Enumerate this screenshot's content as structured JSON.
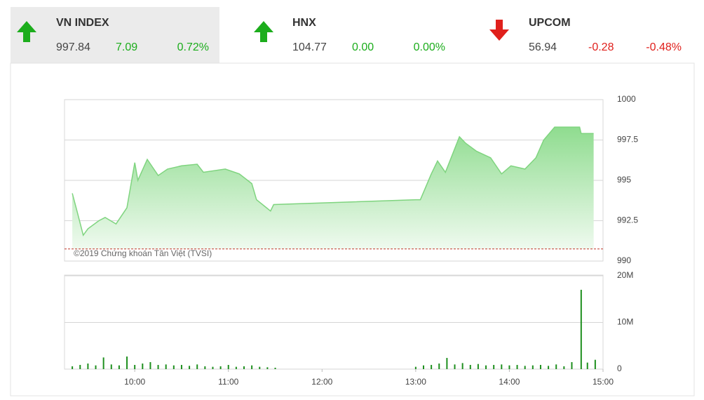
{
  "indices": [
    {
      "name": "VN INDEX",
      "value": "997.84",
      "change": "7.09",
      "pct": "0.72%",
      "direction": "up",
      "color": "#1cad1c"
    },
    {
      "name": "HNX",
      "value": "104.77",
      "change": "0.00",
      "pct": "0.00%",
      "direction": "up",
      "color": "#1cad1c"
    },
    {
      "name": "UPCOM",
      "value": "56.94",
      "change": "-0.28",
      "pct": "-0.48%",
      "direction": "down",
      "color": "#e0201c"
    }
  ],
  "chart_data": [
    {
      "type": "area",
      "watermark": "©2019 Chứng khoán Tân Việt (TVSI)",
      "color": "#7fd47f",
      "reference_line": 990.75,
      "reference_color": "#c0392b",
      "x": [
        "09:20",
        "09:23",
        "09:27",
        "09:30",
        "09:37",
        "09:41",
        "09:48",
        "09:55",
        "10:00",
        "10:02",
        "10:08",
        "10:15",
        "10:21",
        "10:30",
        "10:40",
        "10:44",
        "10:58",
        "11:07",
        "11:15",
        "11:18",
        "11:27",
        "11:29",
        "13:00",
        "13:03",
        "13:10",
        "13:14",
        "13:19",
        "13:28",
        "13:32",
        "13:39",
        "13:48",
        "13:55",
        "14:01",
        "14:10",
        "14:17",
        "14:22",
        "14:29",
        "14:45",
        "14:46",
        "14:54"
      ],
      "values": [
        994.2,
        993.1,
        991.6,
        992.0,
        992.5,
        992.7,
        992.3,
        993.3,
        996.1,
        995.0,
        996.3,
        995.3,
        995.7,
        995.9,
        996.0,
        995.5,
        995.7,
        995.4,
        994.8,
        993.8,
        993.1,
        993.5,
        993.8,
        993.8,
        995.4,
        996.2,
        995.5,
        997.7,
        997.3,
        996.8,
        996.4,
        995.4,
        995.9,
        995.7,
        996.4,
        997.5,
        998.3,
        998.3,
        997.9,
        997.9
      ],
      "xlim": [
        "09:15",
        "15:00"
      ],
      "ylim": [
        990,
        1000
      ],
      "yticks": [
        990,
        {
          "value": 992.5,
          "label": "992.5"
        },
        995,
        {
          "value": 997.5,
          "label": "997.5"
        },
        1000
      ],
      "grid": true
    },
    {
      "type": "bar",
      "color": "#1e8f1e",
      "x": [
        "09:20",
        "09:25",
        "09:30",
        "09:35",
        "09:40",
        "09:45",
        "09:50",
        "09:55",
        "10:00",
        "10:05",
        "10:10",
        "10:15",
        "10:20",
        "10:25",
        "10:30",
        "10:35",
        "10:40",
        "10:45",
        "10:50",
        "10:55",
        "11:00",
        "11:05",
        "11:10",
        "11:15",
        "11:20",
        "11:25",
        "11:30",
        "13:00",
        "13:05",
        "13:10",
        "13:15",
        "13:20",
        "13:25",
        "13:30",
        "13:35",
        "13:40",
        "13:45",
        "13:50",
        "13:55",
        "14:00",
        "14:05",
        "14:10",
        "14:15",
        "14:20",
        "14:25",
        "14:30",
        "14:35",
        "14:40",
        "14:46",
        "14:50",
        "14:55"
      ],
      "values": [
        600000,
        900000,
        1200000,
        800000,
        2500000,
        1000000,
        800000,
        2700000,
        900000,
        1200000,
        1500000,
        900000,
        1000000,
        800000,
        900000,
        700000,
        1000000,
        600000,
        500000,
        600000,
        900000,
        500000,
        600000,
        800000,
        500000,
        400000,
        300000,
        500000,
        800000,
        900000,
        1200000,
        2400000,
        1000000,
        1300000,
        900000,
        1100000,
        800000,
        900000,
        1000000,
        800000,
        900000,
        700000,
        800000,
        900000,
        700000,
        1000000,
        600000,
        1500000,
        17000000,
        1400000,
        2000000
      ],
      "xlim": [
        "09:15",
        "15:00"
      ],
      "ylim": [
        0,
        20000000
      ],
      "yticks": [
        0,
        {
          "value": 10000000,
          "label": "10M"
        },
        {
          "value": 20000000,
          "label": "20M"
        }
      ],
      "xticks": [
        "10:00",
        "11:00",
        "12:00",
        "13:00",
        "14:00",
        "15:00"
      ],
      "grid": true
    }
  ]
}
